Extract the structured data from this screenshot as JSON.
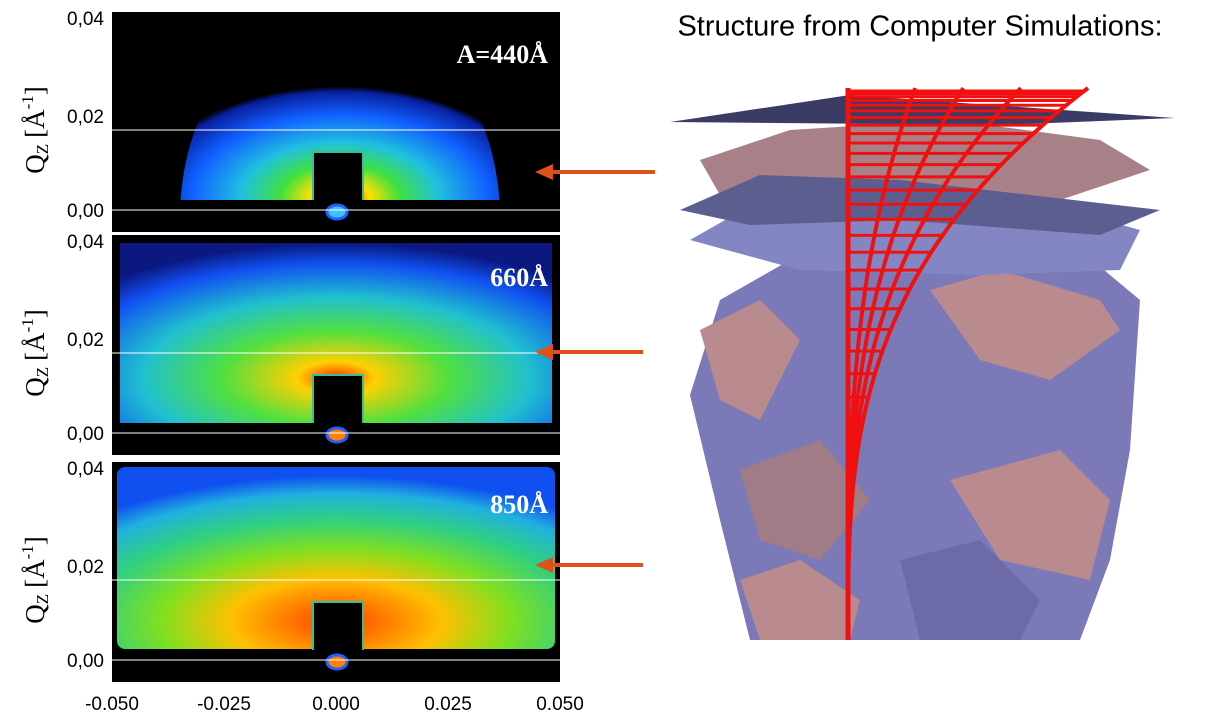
{
  "title": "Structure from Computer Simulations:",
  "panels": [
    {
      "annotation": "A=440Å",
      "yticks": [
        "0,04",
        "0,02",
        "0,00"
      ]
    },
    {
      "annotation": "660Å",
      "yticks": [
        "0,04",
        "0,02",
        "0,00"
      ]
    },
    {
      "annotation": "850Å",
      "yticks": [
        "0,04",
        "0,02",
        "0,00"
      ]
    }
  ],
  "y_axis_label": {
    "symbol": "Q",
    "subscript": "Z",
    "unit_open": "[Å",
    "superscript": "-1",
    "unit_close": "]"
  },
  "xticks": [
    "-0.050",
    "-0.025",
    "0.000",
    "0.025",
    "0.050"
  ]
}
